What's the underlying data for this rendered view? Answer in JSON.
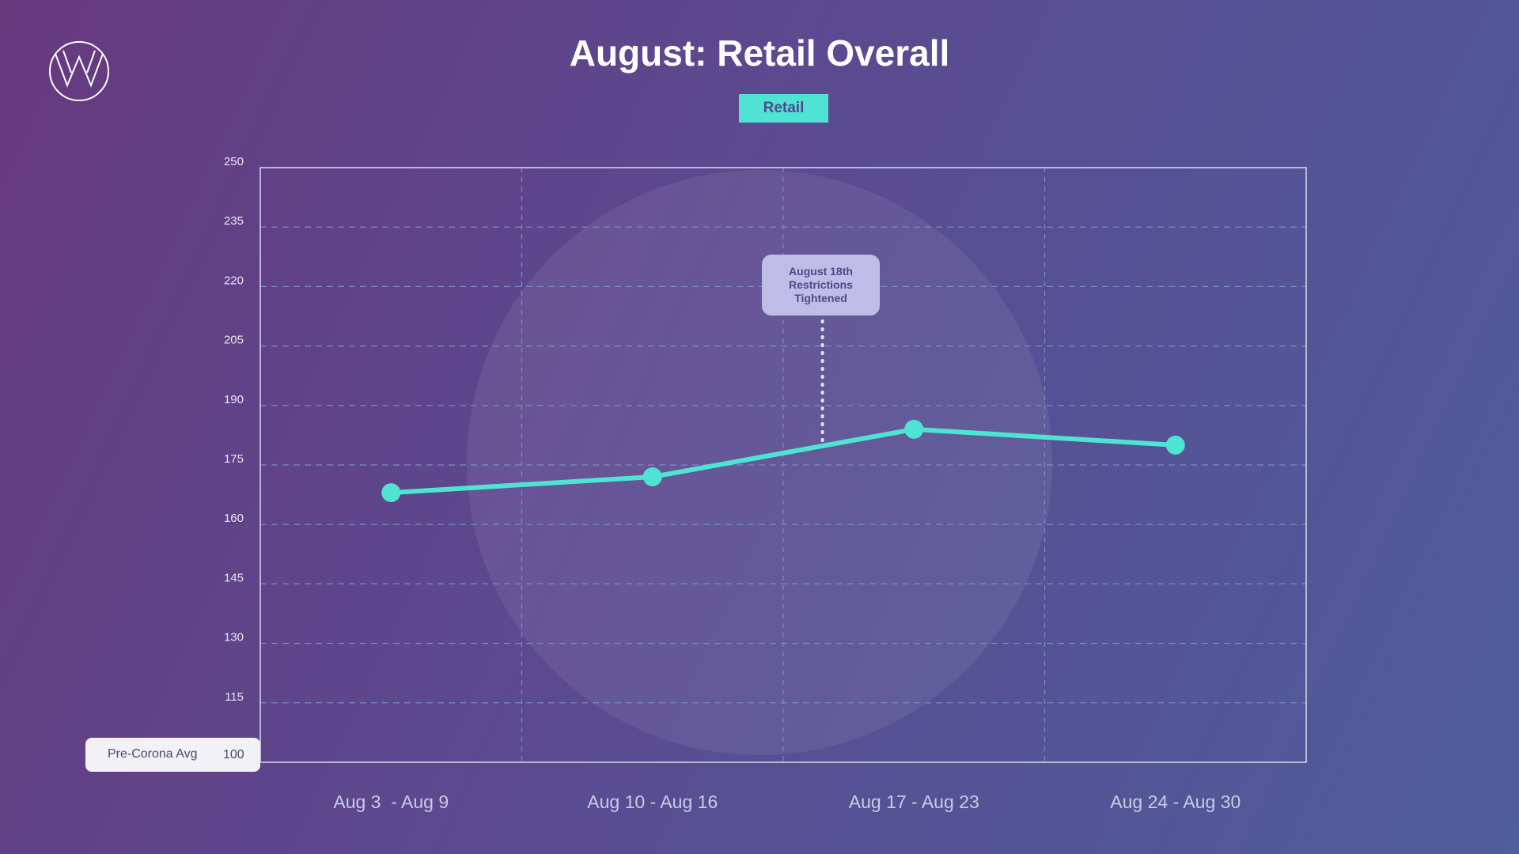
{
  "header": {
    "title": "August: Retail Overall",
    "legend_label": "Retail"
  },
  "logo": {
    "icon": "w-monogram-logo-icon"
  },
  "baseline": {
    "label": "Pre-Corona Avg",
    "value_label": "100"
  },
  "annotation": {
    "text": "August 18th\nRestrictions\nTightened"
  },
  "colors": {
    "series": "#4fe3d3",
    "grid": "#7b8fc4",
    "frame": "#d8daf0",
    "axis_text": "#e6e6f5",
    "annotation_bg": "#bfbde8"
  },
  "chart_data": {
    "type": "line",
    "title": "August: Retail Overall",
    "xlabel": "",
    "ylabel": "",
    "categories": [
      "Aug 3  - Aug 9",
      "Aug 10 - Aug 16",
      "Aug 17 - Aug 23",
      "Aug 24 - Aug 30"
    ],
    "series": [
      {
        "name": "Retail",
        "values": [
          168,
          172,
          184,
          180
        ]
      }
    ],
    "ylim": [
      100,
      250
    ],
    "yticks": [
      115,
      130,
      145,
      160,
      175,
      190,
      205,
      220,
      235,
      250
    ],
    "grid": true,
    "legend_position": "top-center",
    "annotations": [
      {
        "text": "August 18th Restrictions Tightened",
        "category_position": 1.65
      }
    ]
  }
}
